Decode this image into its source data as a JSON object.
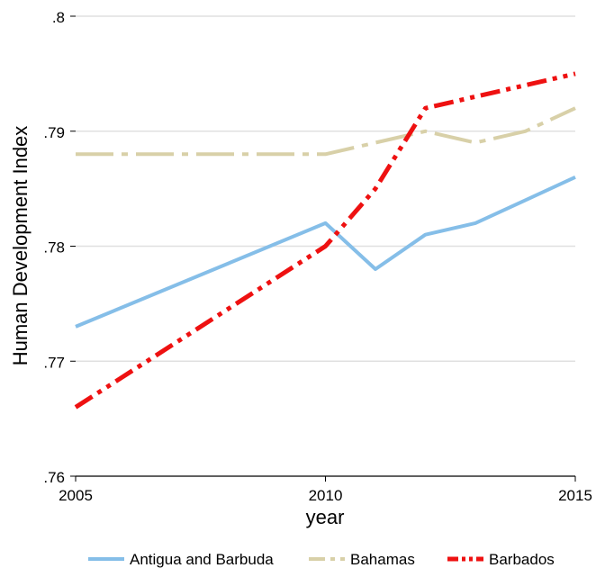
{
  "chart_data": {
    "type": "line",
    "title": "",
    "xlabel": "year",
    "ylabel": "Human Development Index",
    "xlim": [
      2005,
      2015
    ],
    "ylim": [
      0.76,
      0.8
    ],
    "x_ticks": [
      2005,
      2010,
      2015
    ],
    "x_tick_labels": [
      "2005",
      "2010",
      "2015"
    ],
    "y_ticks": [
      0.76,
      0.77,
      0.78,
      0.79,
      0.8
    ],
    "y_tick_labels": [
      ".76",
      ".77",
      ".78",
      ".79",
      ".8"
    ],
    "grid": "horizontal",
    "legend_position": "bottom",
    "series": [
      {
        "name": "Antigua and Barbuda",
        "color": "#85bee8",
        "dash": "solid",
        "x": [
          2005,
          2010,
          2011,
          2012,
          2013,
          2014,
          2015
        ],
        "y": [
          0.773,
          0.782,
          0.778,
          0.781,
          0.782,
          0.784,
          0.786
        ]
      },
      {
        "name": "Bahamas",
        "color": "#d8d0a8",
        "dash": "long-dash-dot",
        "x": [
          2005,
          2010,
          2011,
          2012,
          2013,
          2014,
          2015
        ],
        "y": [
          0.788,
          0.788,
          0.789,
          0.79,
          0.789,
          0.79,
          0.792
        ]
      },
      {
        "name": "Barbados",
        "color": "#ee1111",
        "dash": "dash-dot-dot",
        "x": [
          2005,
          2010,
          2011,
          2012,
          2013,
          2014,
          2015
        ],
        "y": [
          0.766,
          0.78,
          0.785,
          0.792,
          0.793,
          0.794,
          0.795
        ]
      }
    ]
  }
}
